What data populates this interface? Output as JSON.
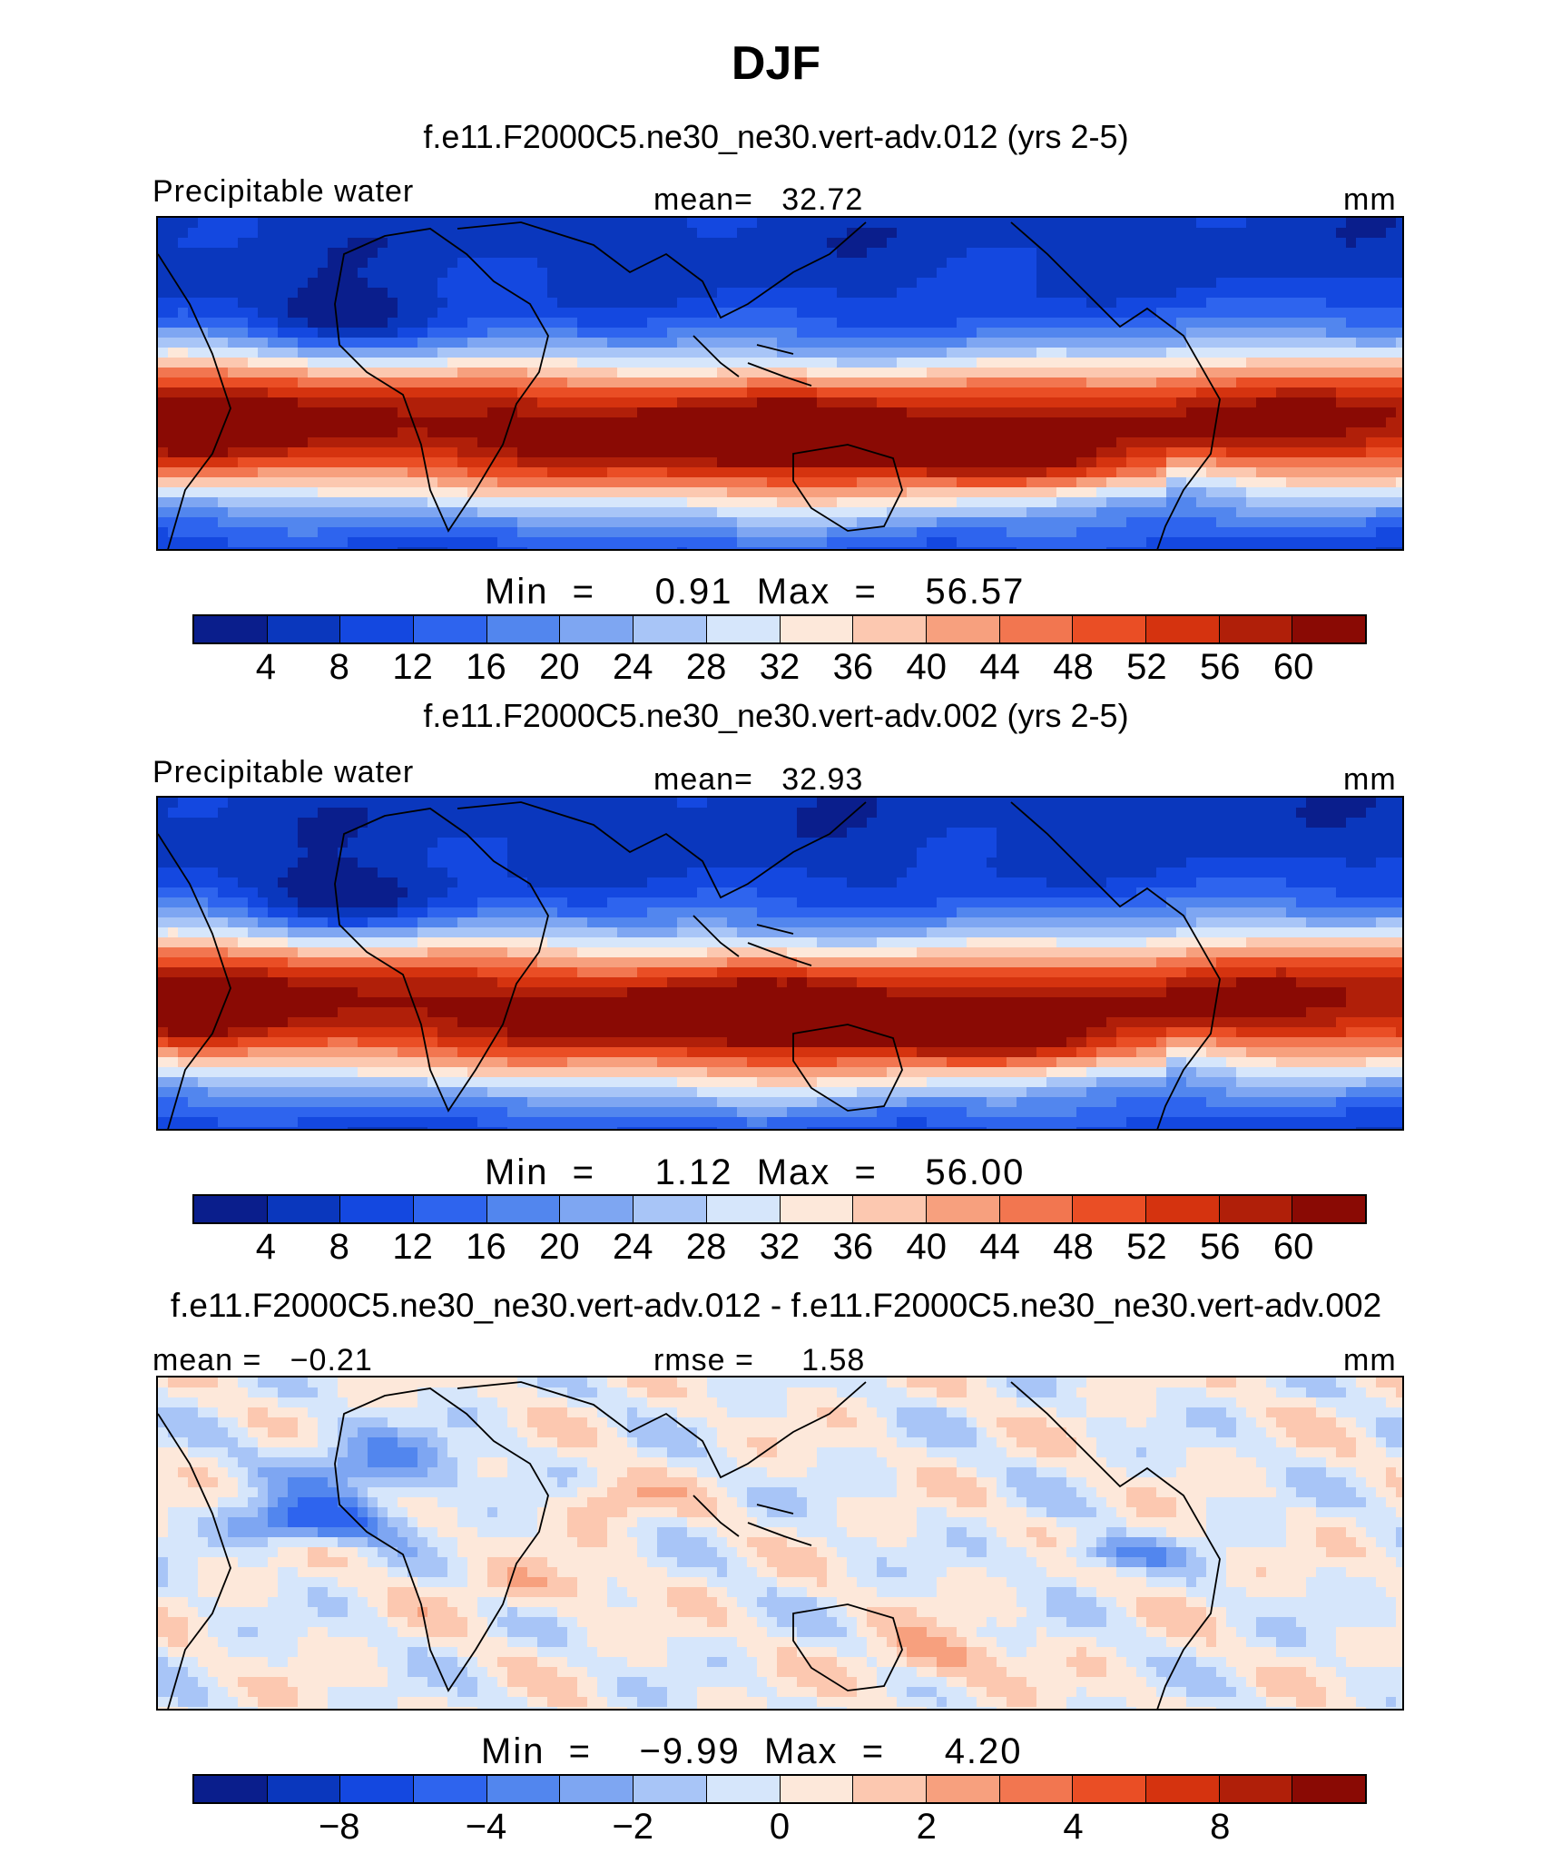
{
  "title": "DJF",
  "panels": [
    {
      "case": "f.e11.F2000C5.ne30_ne30.vert-adv.012 (yrs 2-5)",
      "variable": "Precipitable water",
      "stat_label": "mean=",
      "stat_value": "32.72",
      "units": "mm",
      "min_label": "Min",
      "min_value": "0.91",
      "max_label": "Max",
      "max_value": "56.57"
    },
    {
      "case": "f.e11.F2000C5.ne30_ne30.vert-adv.002 (yrs 2-5)",
      "variable": "Precipitable water",
      "stat_label": "mean=",
      "stat_value": "32.93",
      "units": "mm",
      "min_label": "Min",
      "min_value": "1.12",
      "max_label": "Max",
      "max_value": "56.00"
    },
    {
      "case": "f.e11.F2000C5.ne30_ne30.vert-adv.012 - f.e11.F2000C5.ne30_ne30.vert-adv.002",
      "mean_label": "mean =",
      "mean_value": "−0.21",
      "stat_label": "rmse =",
      "stat_value": "1.58",
      "units": "mm",
      "min_label": "Min",
      "min_value": "−9.99",
      "max_label": "Max",
      "max_value": "4.20"
    }
  ],
  "colors": {
    "palette": [
      "#0a1e8c",
      "#0a37bd",
      "#1448e0",
      "#2e64ee",
      "#5286ee",
      "#7ea6f2",
      "#a8c5f7",
      "#d6e6fb",
      "#fde8da",
      "#fcc8b0",
      "#f7a07e",
      "#f27650",
      "#ea4e25",
      "#d5330f",
      "#b01f09",
      "#8a0a04"
    ]
  },
  "chart_data": [
    {
      "type": "heatmap",
      "title": "f.e11.F2000C5.ne30_ne30.vert-adv.012 (yrs 2-5)",
      "variable": "Precipitable water",
      "units": "mm",
      "mean": 32.72,
      "min": 0.91,
      "max": 56.57,
      "contour_levels": [
        4,
        8,
        12,
        16,
        20,
        24,
        28,
        32,
        36,
        40,
        44,
        48,
        52,
        56,
        60
      ],
      "colorbar_ticks": [
        "4",
        "8",
        "12",
        "16",
        "20",
        "24",
        "28",
        "32",
        "36",
        "40",
        "44",
        "48",
        "52",
        "56",
        "60"
      ]
    },
    {
      "type": "heatmap",
      "title": "f.e11.F2000C5.ne30_ne30.vert-adv.002 (yrs 2-5)",
      "variable": "Precipitable water",
      "units": "mm",
      "mean": 32.93,
      "min": 1.12,
      "max": 56.0,
      "contour_levels": [
        4,
        8,
        12,
        16,
        20,
        24,
        28,
        32,
        36,
        40,
        44,
        48,
        52,
        56,
        60
      ],
      "colorbar_ticks": [
        "4",
        "8",
        "12",
        "16",
        "20",
        "24",
        "28",
        "32",
        "36",
        "40",
        "44",
        "48",
        "52",
        "56",
        "60"
      ]
    },
    {
      "type": "heatmap",
      "title": "f.e11.F2000C5.ne30_ne30.vert-adv.012 - f.e11.F2000C5.ne30_ne30.vert-adv.002",
      "units": "mm",
      "mean": -0.21,
      "rmse": 1.58,
      "min": -9.99,
      "max": 4.2,
      "contour_levels": [
        -10,
        -8,
        -6,
        -4,
        -3,
        -2,
        -1,
        0,
        1,
        2,
        3,
        4,
        6,
        8,
        10
      ],
      "colorbar_ticks": [
        "−8",
        "−4",
        "−2",
        "0",
        "2",
        "4",
        "8"
      ],
      "colorbar_tick_levels": [
        -8,
        -4,
        -2,
        0,
        2,
        4,
        8
      ]
    }
  ]
}
